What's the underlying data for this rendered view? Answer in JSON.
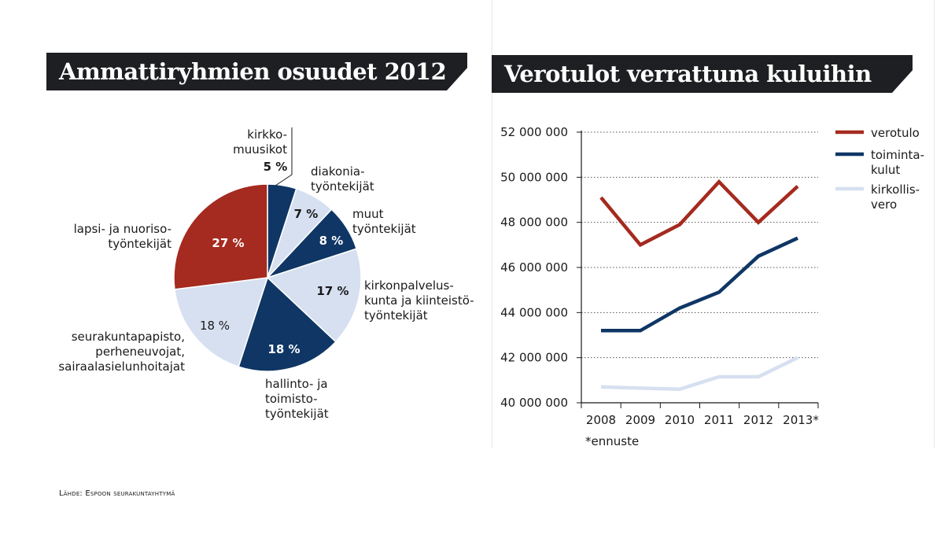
{
  "left": {
    "title": "Ammattiryhmien osuudet 2012"
  },
  "right": {
    "title": "Verotulot verrattuna kuluihin",
    "footnote": "*ennuste"
  },
  "source": "Lähde: Espoon seurakuntayhtymä",
  "colors": {
    "dark_red": "#a52a1f",
    "navy": "#0f3665",
    "light_blue": "#d6e0f0",
    "banner": "#1e1f22"
  },
  "chart_data": [
    {
      "type": "pie",
      "title": "Ammattiryhmien osuudet 2012",
      "slices": [
        {
          "label_lines": [
            "kirkko-",
            "muusikot"
          ],
          "value": 5,
          "value_label": "5 %",
          "color": "navy"
        },
        {
          "label_lines": [
            "diakonia-",
            "työntekijät"
          ],
          "value": 7,
          "value_label": "7 %",
          "color": "light_blue"
        },
        {
          "label_lines": [
            "muut",
            "työntekijät"
          ],
          "value": 8,
          "value_label": "8 %",
          "color": "navy"
        },
        {
          "label_lines": [
            "kirkonpalvelus-",
            "kunta ja kiinteistö-",
            "työntekijät"
          ],
          "value": 17,
          "value_label": "17 %",
          "color": "light_blue"
        },
        {
          "label_lines": [
            "hallinto- ja",
            "toimisto-",
            "työntekijät"
          ],
          "value": 18,
          "value_label": "18 %",
          "color": "navy"
        },
        {
          "label_lines": [
            "seurakuntapapisto,",
            "perheneuvojat,",
            "sairaalasielunhoitajat"
          ],
          "value": 18,
          "value_label": "18 %",
          "color": "light_blue"
        },
        {
          "label_lines": [
            "lapsi- ja nuoriso-",
            "työntekijät"
          ],
          "value": 27,
          "value_label": "27 %",
          "color": "dark_red"
        }
      ]
    },
    {
      "type": "line",
      "title": "Verotulot verrattuna kuluihin",
      "x": [
        "2008",
        "2009",
        "2010",
        "2011",
        "2012",
        "2013*"
      ],
      "ylim": [
        40000000,
        52000000
      ],
      "yticks": [
        40000000,
        42000000,
        44000000,
        46000000,
        48000000,
        50000000,
        52000000
      ],
      "ytick_labels": [
        "40 000 000",
        "42 000 000",
        "44 000 000",
        "46 000 000",
        "48 000 000",
        "50 000 000",
        "52 000 000"
      ],
      "grid": "horizontal dotted",
      "legend_position": "right",
      "series": [
        {
          "name_lines": [
            "verotulo"
          ],
          "color": "dark_red",
          "values": [
            49100000,
            47000000,
            47900000,
            49800000,
            48000000,
            49600000
          ]
        },
        {
          "name_lines": [
            "toiminta-",
            "kulut"
          ],
          "color": "navy",
          "values": [
            43200000,
            43200000,
            44200000,
            44900000,
            46500000,
            47300000
          ]
        },
        {
          "name_lines": [
            "kirkollis-",
            "vero"
          ],
          "color": "light_blue",
          "values": [
            40700000,
            40650000,
            40600000,
            41150000,
            41150000,
            42000000
          ]
        }
      ]
    }
  ]
}
